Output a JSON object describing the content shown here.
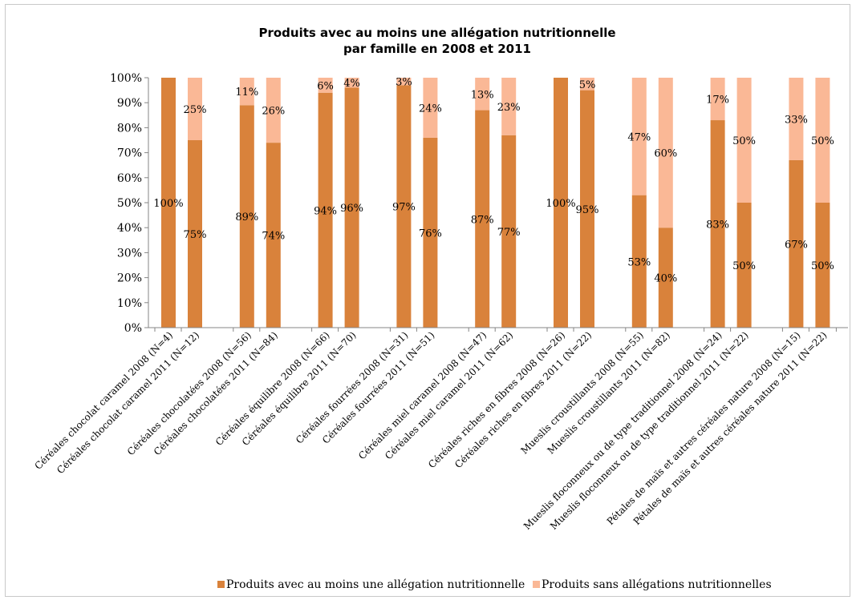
{
  "chart_data": {
    "type": "bar",
    "stacked": true,
    "title_line1": "Produits avec au moins une allégation nutritionnelle",
    "title_line2": "par famille en 2008 et 2011",
    "ylim": [
      0,
      100
    ],
    "y_ticks": [
      "0%",
      "10%",
      "20%",
      "30%",
      "40%",
      "50%",
      "60%",
      "70%",
      "80%",
      "90%",
      "100%"
    ],
    "legend_position": "bottom",
    "gridlines": false,
    "categories": [
      "Céréales chocolat caramel 2008 (N=4)",
      "Céréales chocolat caramel 2011 (N=12)",
      "Céréales chocolatées 2008 (N=56)",
      "Céréales chocolatées 2011 (N=84)",
      "Céréales équilibre 2008 (N=66)",
      "Céréales équilibre 2011 (N=70)",
      "Céréales fourrées 2008 (N=31)",
      "Céréales fourrées 2011 (N=51)",
      "Céréales miel caramel 2008 (N=47)",
      "Céréales miel caramel 2011 (N=62)",
      "Céréales riches en fibres 2008 (N=26)",
      "Céréales riches en fibres 2011 (N=22)",
      "Mueslis croustillants 2008 (N=55)",
      "Mueslis croustillants 2011 (N=82)",
      "Mueslis floconneux ou de type traditionnel 2008 (N=24)",
      "Mueslis floconneux ou de type traditionnel 2011 (N=22)",
      "Pétales de maïs et autres céréales nature 2008 (N=15)",
      "Pétales de maïs et autres céréales nature 2011 (N=22)"
    ],
    "series": [
      {
        "name": "Produits avec au moins une allégation nutritionnelle",
        "color": "#d9823b",
        "values": [
          100,
          75,
          89,
          74,
          94,
          96,
          97,
          76,
          87,
          77,
          100,
          95,
          53,
          40,
          83,
          50,
          67,
          50
        ],
        "labels": [
          "100%",
          "75%",
          "89%",
          "74%",
          "94%",
          "96%",
          "97%",
          "76%",
          "87%",
          "77%",
          "100%",
          "95%",
          "53%",
          "40%",
          "83%",
          "50%",
          "67%",
          "50%"
        ]
      },
      {
        "name": "Produits sans allégations nutritionnelles",
        "color": "#fab896",
        "values": [
          0,
          25,
          11,
          26,
          6,
          4,
          3,
          24,
          13,
          23,
          0,
          5,
          47,
          60,
          17,
          50,
          33,
          50
        ],
        "labels": [
          "",
          "25%",
          "11%",
          "26%",
          "6%",
          "4%",
          "3%",
          "24%",
          "13%",
          "23%",
          "",
          "5%",
          "47%",
          "60%",
          "17%",
          "50%",
          "33%",
          "50%"
        ]
      }
    ]
  }
}
